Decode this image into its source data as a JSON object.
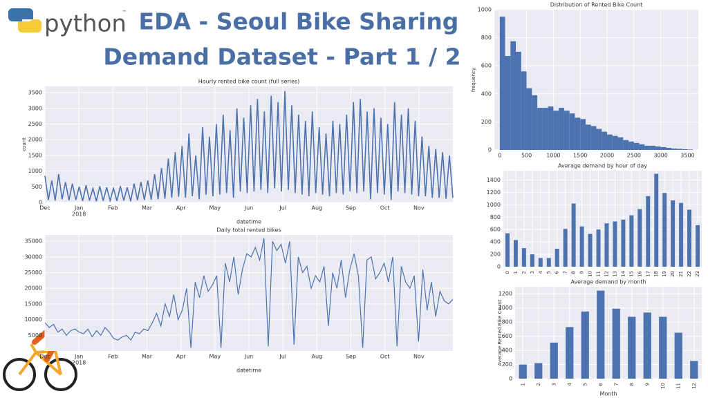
{
  "header": {
    "logo_text": "python",
    "trademark": "™",
    "title_line1": "EDA - Seoul Bike Sharing",
    "title_line2": "Demand Dataset - Part 1 / 2"
  },
  "chart_data": [
    {
      "type": "line",
      "title": "Hourly rented bike count (full series)",
      "xlabel": "datetime",
      "ylabel": "count",
      "color": "#4c72b0",
      "xtick_labels": [
        "Dec",
        "Jan",
        "Feb",
        "Mar",
        "Apr",
        "May",
        "Jun",
        "Jul",
        "Aug",
        "Sep",
        "Oct",
        "Nov"
      ],
      "year_label": "2018",
      "ylim": [
        0,
        3700
      ],
      "yticks": [
        0,
        500,
        1000,
        1500,
        2000,
        2500,
        3000,
        3500
      ],
      "grid": true,
      "values": [
        850,
        80,
        700,
        60,
        900,
        100,
        650,
        70,
        600,
        80,
        500,
        50,
        550,
        60,
        450,
        40,
        520,
        50,
        480,
        60,
        450,
        50,
        520,
        60,
        480,
        40,
        600,
        70,
        650,
        80,
        700,
        90,
        900,
        100,
        1100,
        120,
        1400,
        150,
        1600,
        180,
        1800,
        150,
        2200,
        200,
        1500,
        100,
        2400,
        250,
        2100,
        200,
        2500,
        250,
        2800,
        300,
        2300,
        150,
        3000,
        350,
        2700,
        300,
        3100,
        350,
        3300,
        400,
        2900,
        300,
        3400,
        450,
        3200,
        350,
        3550,
        400,
        3100,
        300,
        2800,
        250,
        2600,
        200,
        2900,
        300,
        2400,
        250,
        2200,
        200,
        2600,
        300,
        2500,
        250,
        2800,
        350,
        3200,
        300,
        3300,
        350,
        2900,
        100,
        3000,
        300,
        2700,
        250,
        2500,
        80,
        3200,
        350,
        2800,
        300,
        3000,
        250,
        2600,
        200,
        2100,
        200,
        1800,
        150,
        1700,
        150,
        1600,
        120,
        1500,
        150
      ]
    },
    {
      "type": "line",
      "title": "Daily total rented bikes",
      "xlabel": "datetime",
      "color": "#4c72b0",
      "xtick_labels": [
        "Dec",
        "Jan",
        "Feb",
        "Mar",
        "Apr",
        "May",
        "Jun",
        "Jul",
        "Aug",
        "Sep",
        "Oct",
        "Nov"
      ],
      "year_label": "2018",
      "ylim": [
        0,
        37000
      ],
      "yticks": [
        5000,
        10000,
        15000,
        20000,
        25000,
        30000,
        35000
      ],
      "grid": true,
      "values": [
        9000,
        7500,
        8500,
        6000,
        7000,
        5000,
        6500,
        7000,
        6000,
        5500,
        7000,
        4500,
        6500,
        5000,
        7500,
        6000,
        4000,
        3500,
        4500,
        5000,
        3500,
        6000,
        5500,
        7000,
        6500,
        9000,
        12000,
        8000,
        15000,
        11000,
        18000,
        10000,
        13000,
        20000,
        1000,
        22000,
        17000,
        24000,
        19000,
        21000,
        24000,
        1000,
        28000,
        22000,
        30000,
        18000,
        26000,
        31000,
        30000,
        33000,
        29000,
        36000,
        1500,
        35000,
        32000,
        34000,
        28000,
        35000,
        2000,
        30000,
        25000,
        27000,
        20000,
        24000,
        22000,
        27000,
        8000,
        25000,
        20000,
        29000,
        17000,
        26000,
        31000,
        24000,
        1000,
        29000,
        30000,
        23000,
        25000,
        28000,
        22000,
        30000,
        1500,
        27000,
        22000,
        20000,
        24000,
        3000,
        26000,
        13000,
        22000,
        11000,
        19000,
        16000,
        15000,
        16500
      ]
    },
    {
      "type": "histogram",
      "title": "Distribution of Rented Bike Count",
      "ylabel": "frequency",
      "color": "#4c72b0",
      "bins": [
        0,
        100,
        200,
        300,
        400,
        500,
        600,
        700,
        800,
        900,
        1000,
        1100,
        1200,
        1300,
        1400,
        1500,
        1600,
        1700,
        1800,
        1900,
        2000,
        2100,
        2200,
        2300,
        2400,
        2500,
        2600,
        2700,
        2800,
        2900,
        3000,
        3100,
        3200,
        3300,
        3400,
        3500,
        3600
      ],
      "counts": [
        950,
        670,
        775,
        700,
        560,
        440,
        390,
        300,
        300,
        310,
        280,
        300,
        280,
        260,
        230,
        220,
        180,
        170,
        150,
        130,
        110,
        100,
        90,
        70,
        60,
        50,
        40,
        30,
        30,
        25,
        20,
        15,
        10,
        8,
        5,
        3
      ],
      "xlim": [
        -100,
        3700
      ],
      "xticks": [
        0,
        500,
        1000,
        1500,
        2000,
        2500,
        3000,
        3500
      ],
      "ylim": [
        0,
        1000
      ],
      "yticks": [
        0,
        200,
        400,
        600,
        800,
        1000
      ],
      "grid": true
    },
    {
      "type": "bar",
      "title": "Average demand by hour of day",
      "color": "#4c72b0",
      "categories": [
        "0",
        "1",
        "2",
        "3",
        "4",
        "5",
        "6",
        "7",
        "8",
        "9",
        "10",
        "11",
        "12",
        "13",
        "14",
        "15",
        "16",
        "17",
        "18",
        "19",
        "20",
        "21",
        "22",
        "23"
      ],
      "values": [
        540,
        430,
        300,
        200,
        140,
        140,
        290,
        610,
        1020,
        650,
        530,
        600,
        700,
        730,
        760,
        830,
        930,
        1140,
        1500,
        1190,
        1070,
        1030,
        920,
        670
      ],
      "ylim": [
        0,
        1550
      ],
      "yticks": [
        0,
        200,
        400,
        600,
        800,
        1000,
        1200,
        1400
      ],
      "grid": true,
      "rotate_labels": true
    },
    {
      "type": "bar",
      "title": "Average demand by month",
      "xlabel": "Month",
      "ylabel": "Average Rented Bike Count",
      "color": "#4c72b0",
      "categories": [
        "1",
        "2",
        "3",
        "4",
        "5",
        "6",
        "7",
        "8",
        "9",
        "10",
        "11",
        "12"
      ],
      "values": [
        200,
        220,
        510,
        730,
        950,
        1245,
        990,
        875,
        935,
        875,
        650,
        250
      ],
      "ylim": [
        0,
        1300
      ],
      "yticks": [
        0,
        200,
        400,
        600,
        800,
        1000,
        1200
      ],
      "grid": true,
      "rotate_labels": true
    }
  ]
}
